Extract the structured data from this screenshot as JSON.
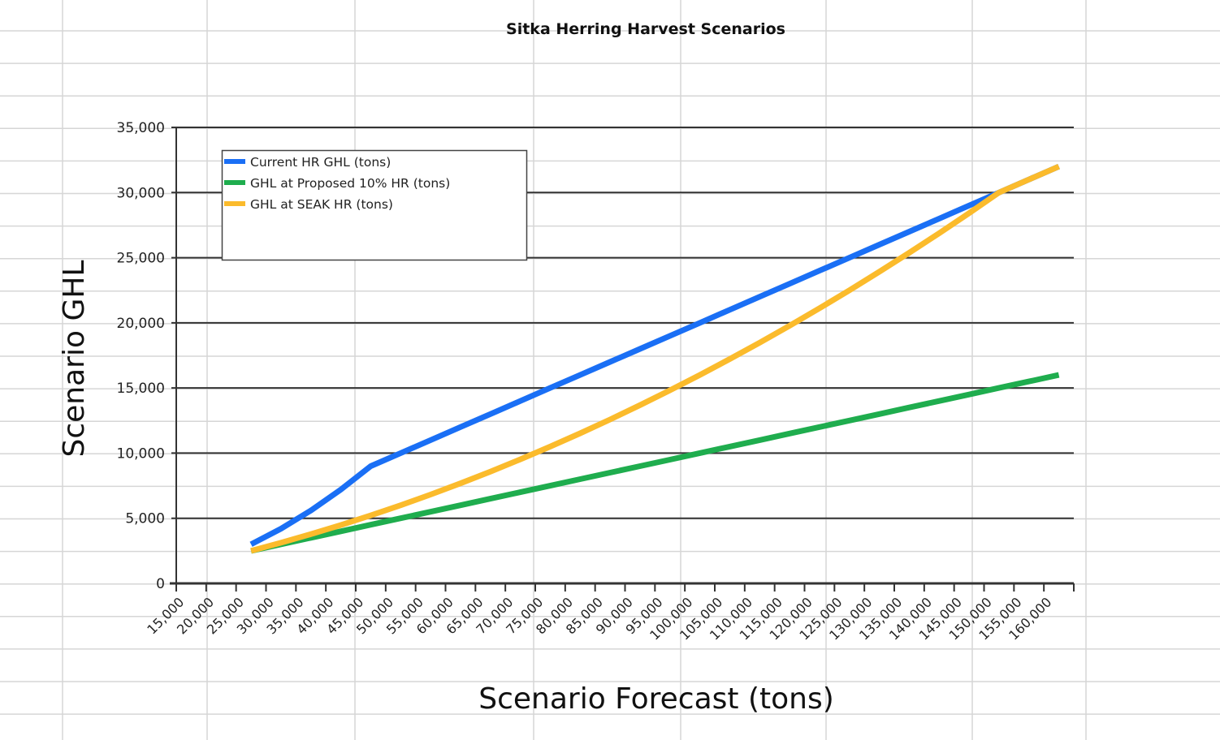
{
  "chart_data": {
    "type": "line",
    "title": "Sitka Herring Harvest Scenarios",
    "xlabel": "Scenario Forecast (tons)",
    "ylabel": "Scenario GHL",
    "categories": [
      "15,000",
      "20,000",
      "25,000",
      "30,000",
      "35,000",
      "40,000",
      "45,000",
      "50,000",
      "55,000",
      "60,000",
      "65,000",
      "70,000",
      "75,000",
      "80,000",
      "85,000",
      "90,000",
      "95,000",
      "100,000",
      "105,000",
      "110,000",
      "115,000",
      "120,000",
      "125,000",
      "130,000",
      "135,000",
      "140,000",
      "145,000",
      "150,000",
      "155,000",
      "160,000"
    ],
    "y_ticks": [
      "0",
      "5,000",
      "10,000",
      "15,000",
      "20,000",
      "25,000",
      "30,000",
      "35,000"
    ],
    "ylim": [
      0,
      35000
    ],
    "grid": "horizontal major lines",
    "legend_placement": "top-left",
    "series": [
      {
        "name": "Current HR GHL (tons)",
        "color": "#1a6ff5",
        "values": [
          null,
          null,
          3000,
          4200,
          5600,
          7200,
          9000,
          10000,
          11000,
          12000,
          13000,
          14000,
          15000,
          16000,
          17000,
          18000,
          19000,
          20000,
          21000,
          22000,
          23000,
          24000,
          25000,
          26000,
          27000,
          28000,
          29000,
          30000,
          31000,
          32000
        ]
      },
      {
        "name": "GHL at  Proposed 10% HR (tons)",
        "color": "#1fad4e",
        "values": [
          null,
          null,
          2500,
          3000,
          3500,
          4000,
          4500,
          5000,
          5500,
          6000,
          6500,
          7000,
          7500,
          8000,
          8500,
          9000,
          9500,
          10000,
          10500,
          11000,
          11500,
          12000,
          12500,
          13000,
          13500,
          14000,
          14500,
          15000,
          15500,
          16000
        ]
      },
      {
        "name": "GHL at  SEAK HR (tons)",
        "color": "#fbbb2c",
        "values": [
          null,
          null,
          2500,
          3120,
          3780,
          4480,
          5220,
          6000,
          6820,
          7680,
          8580,
          9520,
          10500,
          11520,
          12580,
          13680,
          14820,
          16000,
          17220,
          18480,
          19780,
          21120,
          22500,
          23920,
          25380,
          26880,
          28420,
          30000,
          31000,
          32000
        ]
      }
    ]
  }
}
